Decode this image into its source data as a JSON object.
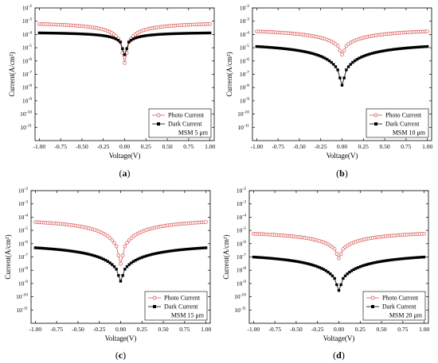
{
  "figure": {
    "colors": {
      "photo": "#d9534f",
      "dark": "#000000"
    },
    "panels": [
      {
        "id": "a",
        "caption_letter": "a",
        "legend": {
          "photo_label": "Photo Current",
          "dark_label": "Dark Current",
          "sample_label": "MSM 5 μm",
          "placement": "bottom-right"
        },
        "chart_data": {
          "type": "scatter",
          "x_label": "Voltage(V)",
          "y_label": "Current(A/cm²)",
          "y_scale": "log",
          "xlim": [
            -1.05,
            1.05
          ],
          "ylim_exp": [
            -12,
            -2
          ],
          "x_ticks": [
            "-1.00",
            "-0.75",
            "-0.50",
            "-0.25",
            "0.00",
            "0.25",
            "0.50",
            "0.75",
            "1.00"
          ],
          "y_tick_exponents": [
            -2,
            -3,
            -4,
            -5,
            -6,
            -7,
            -8,
            -9,
            -10,
            -11
          ],
          "series": [
            {
              "name": "Photo Current",
              "marker": "open-circle",
              "curve": {
                "plateau": 0.00095,
                "valley": 7e-07,
                "shape": 0.12
              }
            },
            {
              "name": "Dark Current",
              "marker": "filled-square",
              "curve": {
                "plateau": 0.00016,
                "valley": 3e-06,
                "shape": 0.1
              }
            }
          ]
        }
      },
      {
        "id": "b",
        "caption_letter": "b",
        "legend": {
          "photo_label": "Photo Current",
          "dark_label": "Dark Current",
          "sample_label": "MSM 10 μm",
          "placement": "bottom-right"
        },
        "chart_data": {
          "type": "scatter",
          "x_label": "Voltage(V)",
          "y_label": "Current(A/cm²)",
          "y_scale": "log",
          "xlim": [
            -1.05,
            1.05
          ],
          "ylim_exp": [
            -12,
            -2
          ],
          "x_ticks": [
            "-1.00",
            "-0.75",
            "-0.50",
            "-0.25",
            "0.00",
            "0.25",
            "0.50",
            "0.75",
            "1.00"
          ],
          "y_tick_exponents": [
            -2,
            -3,
            -4,
            -5,
            -6,
            -7,
            -8,
            -9,
            -10,
            -11
          ],
          "series": [
            {
              "name": "Photo Current",
              "marker": "open-circle",
              "curve": {
                "plateau": 0.00035,
                "valley": 3e-06,
                "shape": 0.35
              }
            },
            {
              "name": "Dark Current",
              "marker": "filled-square",
              "curve": {
                "plateau": 3.5e-05,
                "valley": 1.5e-08,
                "shape": 0.3
              }
            }
          ]
        }
      },
      {
        "id": "c",
        "caption_letter": "c",
        "legend": {
          "photo_label": "Photo Current",
          "dark_label": "Dark Current",
          "sample_label": "MSM 15 μm",
          "placement": "bottom-right"
        },
        "chart_data": {
          "type": "scatter",
          "x_label": "Voltage(V)",
          "y_label": "Current(A/cm²)",
          "y_scale": "log",
          "xlim": [
            -1.05,
            1.05
          ],
          "ylim_exp": [
            -12,
            -2
          ],
          "x_ticks": [
            "-1.00",
            "-0.75",
            "-0.50",
            "-0.25",
            "0.00",
            "0.25",
            "0.50",
            "0.75",
            "1.00"
          ],
          "y_tick_exponents": [
            -2,
            -3,
            -4,
            -5,
            -6,
            -7,
            -8,
            -9,
            -10,
            -11
          ],
          "series": [
            {
              "name": "Photo Current",
              "marker": "open-circle",
              "curve": {
                "plateau": 0.00011,
                "valley": 3e-08,
                "shape": 0.25
              }
            },
            {
              "name": "Dark Current",
              "marker": "filled-square",
              "curve": {
                "plateau": 1.6e-06,
                "valley": 1.5e-09,
                "shape": 0.4
              }
            }
          ]
        }
      },
      {
        "id": "d",
        "caption_letter": "d",
        "legend": {
          "photo_label": "Photo Current",
          "dark_label": "Dark Current",
          "sample_label": "MSM 20 μm",
          "placement": "bottom-right"
        },
        "chart_data": {
          "type": "scatter",
          "x_label": "Voltage(V)",
          "y_label": "Current(A/cm²)",
          "y_scale": "log",
          "xlim": [
            -1.05,
            1.05
          ],
          "ylim_exp": [
            -12,
            -2
          ],
          "x_ticks": [
            "-1.00",
            "-0.75",
            "-0.50",
            "-0.25",
            "0.00",
            "0.25",
            "0.50",
            "0.75",
            "1.00"
          ],
          "y_tick_exponents": [
            -2,
            -3,
            -4,
            -5,
            -6,
            -7,
            -8,
            -9,
            -10,
            -11
          ],
          "series": [
            {
              "name": "Photo Current",
              "marker": "open-circle",
              "curve": {
                "plateau": 1.2e-05,
                "valley": 8e-08,
                "shape": 0.35
              }
            },
            {
              "name": "Dark Current",
              "marker": "filled-square",
              "curve": {
                "plateau": 3.2e-07,
                "valley": 3e-10,
                "shape": 0.4
              }
            }
          ]
        }
      }
    ]
  }
}
